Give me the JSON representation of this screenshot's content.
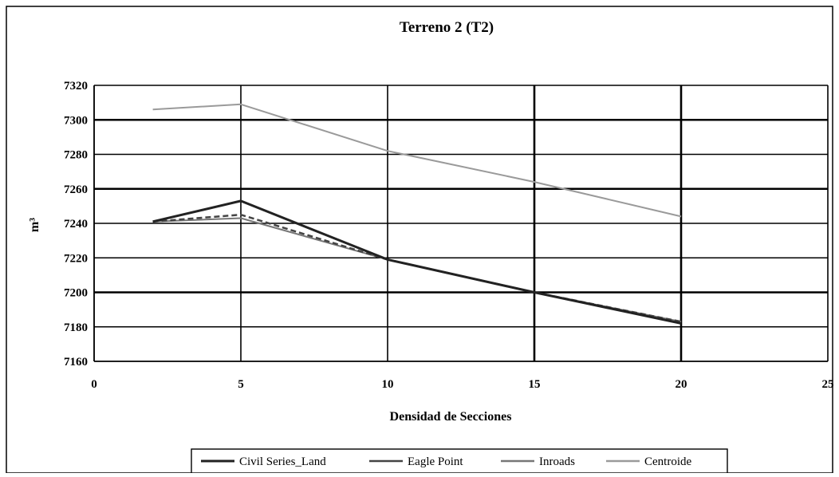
{
  "chart_data": {
    "type": "line",
    "title": "Terreno 2 (T2)",
    "xlabel": "Densidad de Secciones",
    "ylabel": "m³",
    "xlim": [
      0,
      25
    ],
    "ylim": [
      7160,
      7320
    ],
    "x_ticks": [
      "0",
      "5",
      "10",
      "15",
      "20",
      "25"
    ],
    "y_ticks": [
      "7160",
      "7180",
      "7200",
      "7220",
      "7240",
      "7260",
      "7280",
      "7300",
      "7320"
    ],
    "grid": true,
    "legend_position": "bottom",
    "series": [
      {
        "name": "Civil Series_Land",
        "color": "#222222",
        "width": 3,
        "dash": "",
        "x": [
          2,
          5,
          10,
          15,
          20
        ],
        "y": [
          7241,
          7253,
          7219,
          7200,
          7182
        ]
      },
      {
        "name": "Eagle Point",
        "color": "#444444",
        "width": 2.5,
        "dash": "7,4",
        "x": [
          2,
          5,
          10,
          15,
          20
        ],
        "y": [
          7241,
          7245,
          7219,
          7200,
          7183
        ]
      },
      {
        "name": "Inroads",
        "color": "#777777",
        "width": 2,
        "dash": "",
        "x": [
          2,
          5,
          10,
          15,
          20
        ],
        "y": [
          7241,
          7243,
          7219,
          7200,
          7183
        ]
      },
      {
        "name": "Centroide",
        "color": "#9a9a9a",
        "width": 2,
        "dash": "",
        "x": [
          2,
          5,
          10,
          15,
          20
        ],
        "y": [
          7306,
          7309,
          7282,
          7264,
          7244
        ]
      }
    ]
  }
}
